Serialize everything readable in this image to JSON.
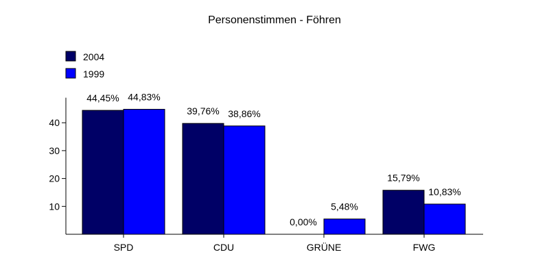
{
  "chart_data": {
    "type": "bar",
    "title": "Personenstimmen - Föhren",
    "xlabel": "",
    "ylabel": "",
    "categories": [
      "SPD",
      "CDU",
      "GRÜNE",
      "FWG"
    ],
    "series": [
      {
        "name": "2004",
        "color": "#000066",
        "values": [
          44.45,
          39.76,
          0.0,
          15.79
        ],
        "labels": [
          "44,45%",
          "39,76%",
          "0,00%",
          "15,79%"
        ]
      },
      {
        "name": "1999",
        "color": "#0000ff",
        "values": [
          44.83,
          38.86,
          5.48,
          10.83
        ],
        "labels": [
          "44,83%",
          "38,86%",
          "5,48%",
          "10,83%"
        ]
      }
    ],
    "yticks": [
      10,
      20,
      30,
      40
    ],
    "ytick_labels": [
      "10",
      "20",
      "30",
      "40"
    ],
    "ylim": [
      0,
      49
    ],
    "grid": false,
    "legend_position": "top-left"
  }
}
